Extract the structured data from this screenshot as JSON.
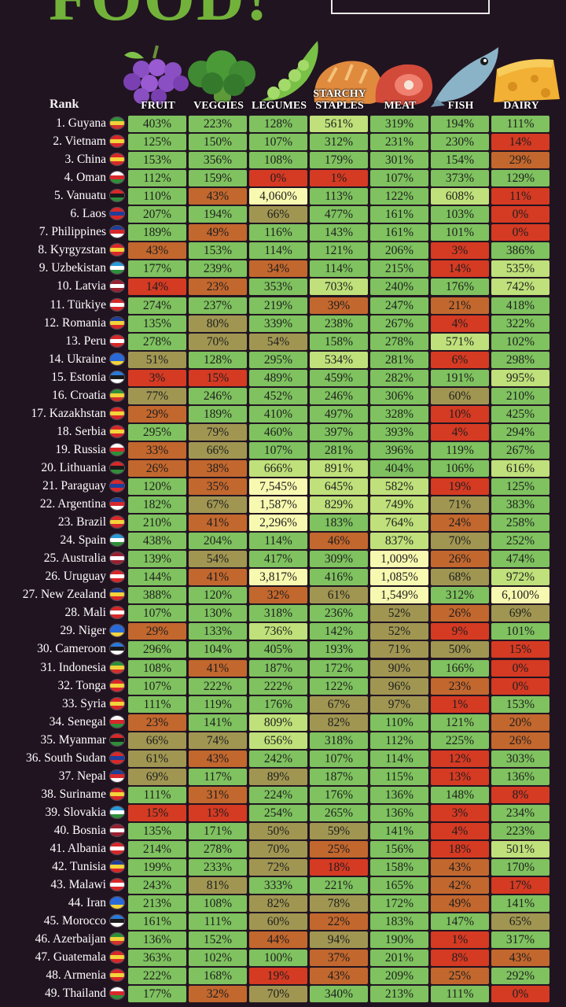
{
  "title": "FOOD!",
  "header": {
    "rank_label": "Rank",
    "columns": [
      "FRUIT",
      "VEGGIES",
      "LEGUMES",
      "STARCHY STAPLES",
      "MEAT",
      "FISH",
      "DAIRY"
    ]
  },
  "icons": [
    "grapes-icon",
    "broccoli-icon",
    "pea-pod-icon",
    "bread-icon",
    "steak-icon",
    "fish-icon",
    "cheese-icon"
  ],
  "colors": {
    "background": "#211421",
    "title": "#72b23a",
    "very_high": "#f8f9b0",
    "high": "#bfe07a",
    "good": "#7fc25f",
    "medium": "#a09652",
    "low": "#c2672e",
    "very_low": "#d53a23"
  },
  "chart_data": {
    "type": "table",
    "title": "FOOD!",
    "columns": [
      "FRUIT",
      "VEGGIES",
      "LEGUMES",
      "STARCHY STAPLES",
      "MEAT",
      "FISH",
      "DAIRY"
    ],
    "rows": [
      {
        "rank": "1. Guyana",
        "values": [
          403,
          223,
          128,
          561,
          319,
          194,
          111
        ],
        "labels": [
          "403%",
          "223%",
          "128%",
          "561%",
          "319%",
          "194%",
          "111%"
        ]
      },
      {
        "rank": "2. Vietnam",
        "values": [
          125,
          150,
          107,
          312,
          231,
          230,
          14
        ],
        "labels": [
          "125%",
          "150%",
          "107%",
          "312%",
          "231%",
          "230%",
          "14%"
        ]
      },
      {
        "rank": "3. China",
        "values": [
          153,
          356,
          108,
          179,
          301,
          154,
          29
        ],
        "labels": [
          "153%",
          "356%",
          "108%",
          "179%",
          "301%",
          "154%",
          "29%"
        ]
      },
      {
        "rank": "4. Oman",
        "values": [
          112,
          159,
          0,
          1,
          107,
          373,
          129
        ],
        "labels": [
          "112%",
          "159%",
          "0%",
          "1%",
          "107%",
          "373%",
          "129%"
        ]
      },
      {
        "rank": "5. Vanuatu",
        "values": [
          110,
          43,
          4060,
          113,
          122,
          608,
          11
        ],
        "labels": [
          "110%",
          "43%",
          "4,060%",
          "113%",
          "122%",
          "608%",
          "11%"
        ]
      },
      {
        "rank": "6. Laos",
        "values": [
          207,
          194,
          66,
          477,
          161,
          103,
          0
        ],
        "labels": [
          "207%",
          "194%",
          "66%",
          "477%",
          "161%",
          "103%",
          "0%"
        ]
      },
      {
        "rank": "7. Philippines",
        "values": [
          189,
          49,
          116,
          143,
          161,
          101,
          0
        ],
        "labels": [
          "189%",
          "49%",
          "116%",
          "143%",
          "161%",
          "101%",
          "0%"
        ]
      },
      {
        "rank": "8. Kyrgyzstan",
        "values": [
          43,
          153,
          114,
          121,
          206,
          3,
          386
        ],
        "labels": [
          "43%",
          "153%",
          "114%",
          "121%",
          "206%",
          "3%",
          "386%"
        ]
      },
      {
        "rank": "9. Uzbekistan",
        "values": [
          177,
          239,
          34,
          114,
          215,
          14,
          535
        ],
        "labels": [
          "177%",
          "239%",
          "34%",
          "114%",
          "215%",
          "14%",
          "535%"
        ]
      },
      {
        "rank": "10. Latvia",
        "values": [
          14,
          23,
          353,
          703,
          240,
          176,
          742
        ],
        "labels": [
          "14%",
          "23%",
          "353%",
          "703%",
          "240%",
          "176%",
          "742%"
        ]
      },
      {
        "rank": "11. Türkiye",
        "values": [
          274,
          237,
          219,
          39,
          247,
          21,
          418
        ],
        "labels": [
          "274%",
          "237%",
          "219%",
          "39%",
          "247%",
          "21%",
          "418%"
        ]
      },
      {
        "rank": "12. Romania",
        "values": [
          135,
          80,
          339,
          238,
          267,
          4,
          322
        ],
        "labels": [
          "135%",
          "80%",
          "339%",
          "238%",
          "267%",
          "4%",
          "322%"
        ]
      },
      {
        "rank": "13. Peru",
        "values": [
          278,
          70,
          54,
          158,
          278,
          571,
          102
        ],
        "labels": [
          "278%",
          "70%",
          "54%",
          "158%",
          "278%",
          "571%",
          "102%"
        ]
      },
      {
        "rank": "14. Ukraine",
        "values": [
          51,
          128,
          295,
          534,
          281,
          6,
          298
        ],
        "labels": [
          "51%",
          "128%",
          "295%",
          "534%",
          "281%",
          "6%",
          "298%"
        ]
      },
      {
        "rank": "15. Estonia",
        "values": [
          3,
          15,
          489,
          459,
          282,
          191,
          995
        ],
        "labels": [
          "3%",
          "15%",
          "489%",
          "459%",
          "282%",
          "191%",
          "995%"
        ]
      },
      {
        "rank": "16. Croatia",
        "values": [
          77,
          246,
          452,
          246,
          306,
          60,
          210
        ],
        "labels": [
          "77%",
          "246%",
          "452%",
          "246%",
          "306%",
          "60%",
          "210%"
        ]
      },
      {
        "rank": "17. Kazakhstan",
        "values": [
          29,
          189,
          410,
          497,
          328,
          10,
          425
        ],
        "labels": [
          "29%",
          "189%",
          "410%",
          "497%",
          "328%",
          "10%",
          "425%"
        ]
      },
      {
        "rank": "18. Serbia",
        "values": [
          295,
          79,
          460,
          397,
          393,
          4,
          294
        ],
        "labels": [
          "295%",
          "79%",
          "460%",
          "397%",
          "393%",
          "4%",
          "294%"
        ]
      },
      {
        "rank": "19. Russia",
        "values": [
          33,
          66,
          107,
          281,
          396,
          119,
          267
        ],
        "labels": [
          "33%",
          "66%",
          "107%",
          "281%",
          "396%",
          "119%",
          "267%"
        ]
      },
      {
        "rank": "20. Lithuania",
        "values": [
          26,
          38,
          666,
          891,
          404,
          106,
          616
        ],
        "labels": [
          "26%",
          "38%",
          "666%",
          "891%",
          "404%",
          "106%",
          "616%"
        ]
      },
      {
        "rank": "21. Paraguay",
        "values": [
          120,
          35,
          7545,
          645,
          582,
          19,
          125
        ],
        "labels": [
          "120%",
          "35%",
          "7,545%",
          "645%",
          "582%",
          "19%",
          "125%"
        ]
      },
      {
        "rank": "22. Argentina",
        "values": [
          182,
          67,
          1587,
          829,
          749,
          71,
          383
        ],
        "labels": [
          "182%",
          "67%",
          "1,587%",
          "829%",
          "749%",
          "71%",
          "383%"
        ]
      },
      {
        "rank": "23. Brazil",
        "values": [
          210,
          41,
          2296,
          183,
          764,
          24,
          258
        ],
        "labels": [
          "210%",
          "41%",
          "2,296%",
          "183%",
          "764%",
          "24%",
          "258%"
        ]
      },
      {
        "rank": "24. Spain",
        "values": [
          438,
          204,
          114,
          46,
          837,
          70,
          252
        ],
        "labels": [
          "438%",
          "204%",
          "114%",
          "46%",
          "837%",
          "70%",
          "252%"
        ]
      },
      {
        "rank": "25. Australia",
        "values": [
          139,
          54,
          417,
          309,
          1009,
          26,
          474
        ],
        "labels": [
          "139%",
          "54%",
          "417%",
          "309%",
          "1,009%",
          "26%",
          "474%"
        ]
      },
      {
        "rank": "26. Uruguay",
        "values": [
          144,
          41,
          3817,
          416,
          1085,
          68,
          972
        ],
        "labels": [
          "144%",
          "41%",
          "3,817%",
          "416%",
          "1,085%",
          "68%",
          "972%"
        ]
      },
      {
        "rank": "27. New Zealand",
        "values": [
          388,
          120,
          32,
          61,
          1549,
          312,
          6100
        ],
        "labels": [
          "388%",
          "120%",
          "32%",
          "61%",
          "1,549%",
          "312%",
          "6,100%"
        ]
      },
      {
        "rank": "28. Mali",
        "values": [
          107,
          130,
          318,
          236,
          52,
          26,
          69
        ],
        "labels": [
          "107%",
          "130%",
          "318%",
          "236%",
          "52%",
          "26%",
          "69%"
        ]
      },
      {
        "rank": "29. Niger",
        "values": [
          29,
          133,
          736,
          142,
          52,
          9,
          101
        ],
        "labels": [
          "29%",
          "133%",
          "736%",
          "142%",
          "52%",
          "9%",
          "101%"
        ]
      },
      {
        "rank": "30. Cameroon",
        "values": [
          296,
          104,
          405,
          193,
          71,
          50,
          15
        ],
        "labels": [
          "296%",
          "104%",
          "405%",
          "193%",
          "71%",
          "50%",
          "15%"
        ]
      },
      {
        "rank": "31. Indonesia",
        "values": [
          108,
          41,
          187,
          172,
          90,
          166,
          0
        ],
        "labels": [
          "108%",
          "41%",
          "187%",
          "172%",
          "90%",
          "166%",
          "0%"
        ]
      },
      {
        "rank": "32. Tonga",
        "values": [
          107,
          222,
          222,
          122,
          96,
          23,
          0
        ],
        "labels": [
          "107%",
          "222%",
          "222%",
          "122%",
          "96%",
          "23%",
          "0%"
        ]
      },
      {
        "rank": "33. Syria",
        "values": [
          111,
          119,
          176,
          67,
          97,
          1,
          153
        ],
        "labels": [
          "111%",
          "119%",
          "176%",
          "67%",
          "97%",
          "1%",
          "153%"
        ]
      },
      {
        "rank": "34. Senegal",
        "values": [
          23,
          141,
          809,
          82,
          110,
          121,
          20
        ],
        "labels": [
          "23%",
          "141%",
          "809%",
          "82%",
          "110%",
          "121%",
          "20%"
        ]
      },
      {
        "rank": "35. Myanmar",
        "values": [
          66,
          74,
          656,
          318,
          112,
          225,
          26
        ],
        "labels": [
          "66%",
          "74%",
          "656%",
          "318%",
          "112%",
          "225%",
          "26%"
        ]
      },
      {
        "rank": "36. South Sudan",
        "values": [
          61,
          43,
          242,
          107,
          114,
          12,
          303
        ],
        "labels": [
          "61%",
          "43%",
          "242%",
          "107%",
          "114%",
          "12%",
          "303%"
        ]
      },
      {
        "rank": "37. Nepal",
        "values": [
          69,
          117,
          89,
          187,
          115,
          13,
          136
        ],
        "labels": [
          "69%",
          "117%",
          "89%",
          "187%",
          "115%",
          "13%",
          "136%"
        ]
      },
      {
        "rank": "38. Suriname",
        "values": [
          111,
          31,
          224,
          176,
          136,
          148,
          8
        ],
        "labels": [
          "111%",
          "31%",
          "224%",
          "176%",
          "136%",
          "148%",
          "8%"
        ]
      },
      {
        "rank": "39. Slovakia",
        "values": [
          15,
          13,
          254,
          265,
          136,
          3,
          234
        ],
        "labels": [
          "15%",
          "13%",
          "254%",
          "265%",
          "136%",
          "3%",
          "234%"
        ]
      },
      {
        "rank": "40. Bosnia",
        "values": [
          135,
          171,
          50,
          59,
          141,
          4,
          223
        ],
        "labels": [
          "135%",
          "171%",
          "50%",
          "59%",
          "141%",
          "4%",
          "223%"
        ]
      },
      {
        "rank": "41. Albania",
        "values": [
          214,
          278,
          70,
          25,
          156,
          18,
          501
        ],
        "labels": [
          "214%",
          "278%",
          "70%",
          "25%",
          "156%",
          "18%",
          "501%"
        ]
      },
      {
        "rank": "42. Tunisia",
        "values": [
          199,
          233,
          72,
          18,
          158,
          43,
          170
        ],
        "labels": [
          "199%",
          "233%",
          "72%",
          "18%",
          "158%",
          "43%",
          "170%"
        ]
      },
      {
        "rank": "43. Malawi",
        "values": [
          243,
          81,
          333,
          221,
          165,
          42,
          17
        ],
        "labels": [
          "243%",
          "81%",
          "333%",
          "221%",
          "165%",
          "42%",
          "17%"
        ]
      },
      {
        "rank": "44. Iran",
        "values": [
          213,
          108,
          82,
          78,
          172,
          49,
          141
        ],
        "labels": [
          "213%",
          "108%",
          "82%",
          "78%",
          "172%",
          "49%",
          "141%"
        ]
      },
      {
        "rank": "45. Morocco",
        "values": [
          161,
          111,
          60,
          22,
          183,
          147,
          65
        ],
        "labels": [
          "161%",
          "111%",
          "60%",
          "22%",
          "183%",
          "147%",
          "65%"
        ]
      },
      {
        "rank": "46. Azerbaijan",
        "values": [
          136,
          152,
          44,
          94,
          190,
          1,
          317
        ],
        "labels": [
          "136%",
          "152%",
          "44%",
          "94%",
          "190%",
          "1%",
          "317%"
        ]
      },
      {
        "rank": "47. Guatemala",
        "values": [
          363,
          102,
          100,
          37,
          201,
          8,
          43
        ],
        "labels": [
          "363%",
          "102%",
          "100%",
          "37%",
          "201%",
          "8%",
          "43%"
        ]
      },
      {
        "rank": "48. Armenia",
        "values": [
          222,
          168,
          19,
          43,
          209,
          25,
          292
        ],
        "labels": [
          "222%",
          "168%",
          "19%",
          "43%",
          "209%",
          "25%",
          "292%"
        ]
      },
      {
        "rank": "49. Thailand",
        "values": [
          177,
          32,
          70,
          340,
          213,
          111,
          0
        ],
        "labels": [
          "177%",
          "32%",
          "70%",
          "340%",
          "213%",
          "111%",
          "0%"
        ]
      }
    ]
  }
}
